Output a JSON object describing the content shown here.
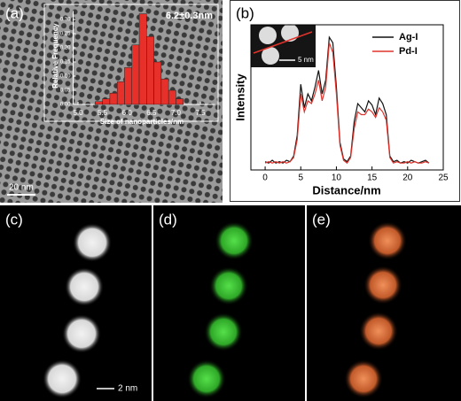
{
  "panel_labels": [
    "(a)",
    "(b)",
    "(c)",
    "(d)",
    "(e)"
  ],
  "scale_bars": {
    "a": "20 nm",
    "b_inset": "5 nm",
    "c": "2 nm"
  },
  "chart_data": [
    {
      "type": "histogram",
      "annotation": "6.2±0.3nm",
      "ylabel": "Relative Frequency",
      "xlabel": "Size of nanoparticles/nm",
      "bins": [
        5.35,
        5.5,
        5.65,
        5.8,
        5.95,
        6.1,
        6.25,
        6.4,
        6.55,
        6.7,
        6.85,
        7.0,
        7.15
      ],
      "values": [
        0.01,
        0.02,
        0.04,
        0.08,
        0.13,
        0.21,
        0.32,
        0.24,
        0.15,
        0.09,
        0.05,
        0.02
      ],
      "color": "#e8302a",
      "xlim": [
        4.9,
        7.8
      ],
      "xticks": [
        {
          "value": 5,
          "label": "5.0"
        },
        {
          "value": 5.5,
          "label": "5.5"
        },
        {
          "value": 6,
          "label": "6.0"
        },
        {
          "value": 6.5,
          "label": "6.5"
        },
        {
          "value": 7,
          "label": "7.0"
        },
        {
          "value": 7.5,
          "label": "7.5"
        }
      ],
      "ylim": [
        0,
        0.33
      ],
      "yticks": [
        {
          "value": 0,
          "label": "0.00"
        },
        {
          "value": 0.05,
          "label": "0.05"
        },
        {
          "value": 0.1,
          "label": "0.10"
        },
        {
          "value": 0.15,
          "label": "0.15"
        },
        {
          "value": 0.2,
          "label": "0.20"
        },
        {
          "value": 0.25,
          "label": "0.25"
        },
        {
          "value": 0.3,
          "label": "0.30"
        }
      ]
    },
    {
      "type": "line",
      "xlabel": "Distance/nm",
      "ylabel": "Intensity",
      "legend": "top-right",
      "x": [
        0,
        0.5,
        1,
        1.5,
        2,
        2.5,
        3,
        3.5,
        4,
        4.5,
        5,
        5.5,
        6,
        6.5,
        7,
        7.5,
        8,
        8.5,
        9,
        9.5,
        10,
        10.5,
        11,
        11.5,
        12,
        12.5,
        13,
        13.5,
        14,
        14.5,
        15,
        15.5,
        16,
        16.5,
        17,
        17.5,
        18,
        18.5,
        19,
        19.5,
        20,
        20.5,
        21,
        21.5,
        22,
        22.5,
        23
      ],
      "series": [
        {
          "name": "Ag-I",
          "color": "#111111",
          "values": [
            0.06,
            0.05,
            0.07,
            0.05,
            0.06,
            0.05,
            0.07,
            0.06,
            0.1,
            0.25,
            0.62,
            0.45,
            0.55,
            0.5,
            0.6,
            0.72,
            0.55,
            0.65,
            0.96,
            0.92,
            0.6,
            0.2,
            0.08,
            0.06,
            0.1,
            0.35,
            0.48,
            0.45,
            0.42,
            0.5,
            0.47,
            0.4,
            0.52,
            0.48,
            0.4,
            0.1,
            0.06,
            0.07,
            0.05,
            0.06,
            0.05,
            0.07,
            0.06,
            0.05,
            0.06,
            0.07,
            0.05
          ]
        },
        {
          "name": "Pd-I",
          "color": "#e0332b",
          "values": [
            0.05,
            0.06,
            0.05,
            0.06,
            0.05,
            0.06,
            0.05,
            0.06,
            0.09,
            0.22,
            0.55,
            0.42,
            0.5,
            0.48,
            0.55,
            0.65,
            0.5,
            0.6,
            0.92,
            0.85,
            0.55,
            0.18,
            0.07,
            0.05,
            0.09,
            0.3,
            0.42,
            0.4,
            0.4,
            0.44,
            0.42,
            0.38,
            0.45,
            0.42,
            0.36,
            0.09,
            0.05,
            0.06,
            0.05,
            0.05,
            0.06,
            0.05,
            0.06,
            0.05,
            0.05,
            0.06,
            0.05
          ]
        }
      ],
      "xlim": [
        -2,
        25
      ],
      "xticks": [
        0,
        5,
        10,
        15,
        20,
        25
      ],
      "ylim": [
        0,
        1.05
      ]
    }
  ]
}
